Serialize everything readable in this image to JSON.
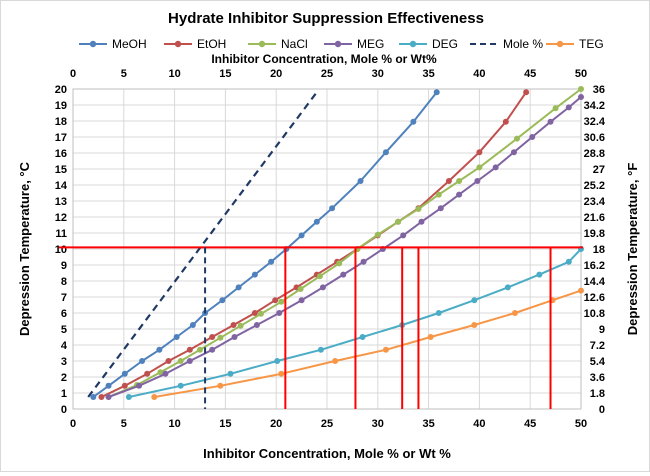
{
  "chart_data": {
    "type": "line",
    "title": "Hydrate Inhibitor Suppression Effectiveness",
    "xlabel": "Inhibitor Concentration, Mole % or Wt %",
    "x2label": "Inhibitor Concentration, Mole % or Wt%",
    "ylabel": "Depression Temperature, °C",
    "y2label": "Depression Temperature, °F",
    "xlim": [
      0,
      50
    ],
    "ylim": [
      0,
      20
    ],
    "y2lim": [
      0,
      36
    ],
    "grid": true,
    "legend_position": "top",
    "x_ticks": [
      "0",
      "5",
      "10",
      "15",
      "20",
      "25",
      "30",
      "35",
      "40",
      "45",
      "50"
    ],
    "y_ticks": [
      "0",
      "1",
      "2",
      "3",
      "4",
      "5",
      "6",
      "7",
      "8",
      "9",
      "10",
      "11",
      "12",
      "13",
      "14",
      "15",
      "16",
      "17",
      "18",
      "19",
      "20"
    ],
    "y2_ticks": [
      "0",
      "1.8",
      "3.6",
      "5.4",
      "7.2",
      "9",
      "10.8",
      "12.6",
      "14.4",
      "16.2",
      "18",
      "19.8",
      "21.6",
      "23.4",
      "25.2",
      "27",
      "28.8",
      "30.6",
      "32.4",
      "34.2",
      "36"
    ],
    "series": [
      {
        "name": "MeOH",
        "color": "#4f81bd",
        "style": "solid",
        "marker": true,
        "x": [
          2,
          3.5,
          5.1,
          6.8,
          8.5,
          10.2,
          11.8,
          13,
          14.7,
          16.3,
          17.9,
          19.5,
          21,
          22.5,
          24,
          25.5,
          28.3,
          30.8,
          33.5,
          35.8
        ],
        "y": [
          0.75,
          1.45,
          2.2,
          3.0,
          3.7,
          4.5,
          5.25,
          6.0,
          6.8,
          7.6,
          8.4,
          9.2,
          10.0,
          10.85,
          11.7,
          12.55,
          14.25,
          16.05,
          17.95,
          19.8
        ]
      },
      {
        "name": "EtOH",
        "color": "#c0504d",
        "style": "solid",
        "marker": true,
        "x": [
          2.8,
          5.1,
          7.3,
          9.4,
          11.5,
          13.7,
          15.8,
          17.9,
          19.9,
          22,
          24,
          26,
          28,
          30,
          32,
          34,
          37,
          40,
          42.6,
          44.6
        ],
        "y": [
          0.75,
          1.45,
          2.2,
          3.0,
          3.7,
          4.5,
          5.25,
          6.0,
          6.8,
          7.6,
          8.4,
          9.2,
          10.0,
          10.85,
          11.7,
          12.55,
          14.25,
          16.05,
          17.95,
          19.8
        ]
      },
      {
        "name": "NaCl",
        "color": "#9bbb59",
        "style": "solid",
        "marker": true,
        "x": [
          3.5,
          6.3,
          8.6,
          10.6,
          12.5,
          14.5,
          16.5,
          18.5,
          20.5,
          22.4,
          24.3,
          26.2,
          28,
          30,
          32,
          34,
          36,
          38,
          40,
          43.7,
          47.5,
          50
        ],
        "y": [
          0.75,
          1.5,
          2.3,
          3.0,
          3.7,
          4.45,
          5.2,
          5.95,
          6.7,
          7.5,
          8.3,
          9.1,
          10.0,
          10.9,
          11.7,
          12.5,
          13.4,
          14.25,
          15.1,
          16.9,
          18.8,
          20.0
        ]
      },
      {
        "name": "MEG",
        "color": "#8064a2",
        "style": "solid",
        "marker": true,
        "x": [
          3.5,
          6.5,
          9.1,
          11.5,
          13.7,
          15.9,
          18.1,
          20.3,
          22.5,
          24.6,
          26.6,
          28.6,
          30.5,
          32.5,
          34.3,
          36.2,
          38,
          39.8,
          41.6,
          43.4,
          45.2,
          47,
          48.8,
          50
        ],
        "y": [
          0.75,
          1.45,
          2.2,
          3.0,
          3.7,
          4.5,
          5.25,
          6.0,
          6.8,
          7.6,
          8.4,
          9.2,
          10.0,
          10.85,
          11.7,
          12.55,
          13.4,
          14.25,
          15.1,
          16.05,
          17.0,
          17.95,
          18.85,
          19.5
        ]
      },
      {
        "name": "DEG",
        "color": "#4bacc6",
        "style": "solid",
        "marker": true,
        "x": [
          5.5,
          10.6,
          15.5,
          20.1,
          24.4,
          28.5,
          32.4,
          36,
          39.5,
          42.8,
          45.9,
          48.8,
          50
        ],
        "y": [
          0.75,
          1.45,
          2.2,
          3.0,
          3.7,
          4.5,
          5.25,
          6.0,
          6.8,
          7.6,
          8.4,
          9.2,
          10.0
        ]
      },
      {
        "name": "Mole %",
        "color": "#1f3864",
        "style": "dashed",
        "marker": false,
        "x": [
          1.5,
          24
        ],
        "y": [
          0.75,
          19.8
        ]
      },
      {
        "name": "TEG",
        "color": "#f79646",
        "style": "solid",
        "marker": true,
        "x": [
          8,
          14.5,
          20.5,
          25.8,
          30.8,
          35.2,
          39.5,
          43.5,
          47.2,
          50
        ],
        "y": [
          0.75,
          1.45,
          2.2,
          3.0,
          3.7,
          4.5,
          5.25,
          6.0,
          6.8,
          7.4
        ]
      }
    ],
    "reference_lines": {
      "color_red": "#ff0000",
      "horizontal_y": 10.1,
      "red_verticals_x": [
        20.9,
        27.8,
        32.4,
        34,
        47
      ],
      "dashed_vertical_x": 13,
      "dashed_vertical_color": "#1f3864"
    }
  }
}
